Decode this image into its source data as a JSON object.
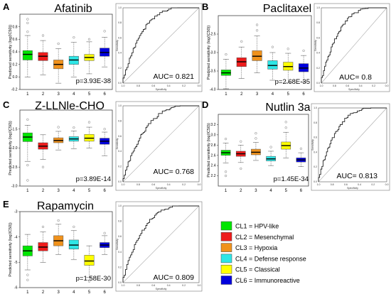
{
  "colors": {
    "CL1": "#00e600",
    "CL2": "#ee1c1c",
    "CL3": "#f0921c",
    "CL4": "#2ee6e6",
    "CL5": "#ffff00",
    "CL6": "#0000dd"
  },
  "legend": [
    {
      "key": "CL1",
      "label": "CL1 = HPV-like"
    },
    {
      "key": "CL2",
      "label": "CL2 = Mesenchymal"
    },
    {
      "key": "CL3",
      "label": "CL3 = Hypoxia"
    },
    {
      "key": "CL4",
      "label": "CL4 = Defense response"
    },
    {
      "key": "CL5",
      "label": "CL5 = Classical"
    },
    {
      "key": "CL6",
      "label": "CL6 = Immunoreactive"
    }
  ],
  "chart_data": [
    {
      "panel": "A",
      "title": "Afatinib",
      "type": "box",
      "categories": [
        "1",
        "2",
        "3",
        "4",
        "5",
        "6"
      ],
      "ylabel": "Predicted sensitivity (log(IC50))",
      "ylim": [
        -0.2,
        1.0
      ],
      "yticks": [
        "-0.2",
        "0.0",
        "0.2",
        "0.4",
        "0.6",
        "0.8"
      ],
      "pvalue": "p=3.93E-38",
      "boxes": [
        {
          "min": 0.0,
          "q1": 0.27,
          "median": 0.36,
          "q3": 0.42,
          "max": 0.66,
          "outliers": [
            0.72,
            0.86,
            0.92
          ]
        },
        {
          "min": 0.03,
          "q1": 0.26,
          "median": 0.33,
          "q3": 0.39,
          "max": 0.58,
          "outliers": [
            0.66
          ]
        },
        {
          "min": -0.1,
          "q1": 0.13,
          "median": 0.2,
          "q3": 0.27,
          "max": 0.45,
          "outliers": [
            0.53
          ]
        },
        {
          "min": 0.0,
          "q1": 0.2,
          "median": 0.27,
          "q3": 0.33,
          "max": 0.55,
          "outliers": [
            0.63
          ]
        },
        {
          "min": 0.05,
          "q1": 0.26,
          "median": 0.31,
          "q3": 0.36,
          "max": 0.56,
          "outliers": [
            0.6
          ]
        },
        {
          "min": 0.16,
          "q1": 0.33,
          "median": 0.39,
          "q3": 0.46,
          "max": 0.63,
          "outliers": [
            0.73
          ]
        }
      ],
      "roc": {
        "auc_text": "AUC= 0.821",
        "xlabel": "Specificity",
        "ylabel": "Sensitivity",
        "xticks": [
          "1.0",
          "0.8",
          "0.6",
          "0.4",
          "0.2",
          "0.0"
        ],
        "yticks": [
          "0.0",
          "0.2",
          "0.4",
          "0.6",
          "0.8",
          "1.0"
        ],
        "bow": 1.05
      }
    },
    {
      "panel": "B",
      "title": "Paclitaxel",
      "type": "box",
      "categories": [
        "1",
        "2",
        "3",
        "4",
        "5",
        "6"
      ],
      "ylabel": "Predicted sensitivity (log(IC50))",
      "ylim": [
        -4.0,
        -2.0
      ],
      "yticks": [
        "-4.0",
        "-3.5",
        "-3.0",
        "-2.5"
      ],
      "pvalue": "p=2.68E-35",
      "boxes": [
        {
          "min": -3.98,
          "q1": -3.62,
          "median": -3.55,
          "q3": -3.47,
          "max": -3.18,
          "outliers": [
            -3.05,
            -4.05
          ]
        },
        {
          "min": -3.7,
          "q1": -3.38,
          "median": -3.25,
          "q3": -3.14,
          "max": -2.85,
          "outliers": [
            -2.7
          ]
        },
        {
          "min": -3.55,
          "q1": -3.22,
          "median": -3.1,
          "q3": -2.95,
          "max": -2.55,
          "outliers": [
            -2.4,
            -2.25
          ]
        },
        {
          "min": -3.75,
          "q1": -3.45,
          "median": -3.35,
          "q3": -3.22,
          "max": -3.0,
          "outliers": [
            -2.85
          ]
        },
        {
          "min": -3.82,
          "q1": -3.48,
          "median": -3.38,
          "q3": -3.26,
          "max": -3.02,
          "outliers": [
            -2.9
          ]
        },
        {
          "min": -3.8,
          "q1": -3.52,
          "median": -3.42,
          "q3": -3.3,
          "max": -3.08,
          "outliers": [
            -2.95
          ]
        }
      ],
      "roc": {
        "auc_text": "AUC= 0.8",
        "xlabel": "Specificity",
        "ylabel": "Sensitivity",
        "xticks": [
          "1.0",
          "0.8",
          "0.6",
          "0.4",
          "0.2",
          "0.0"
        ],
        "yticks": [
          "0.0",
          "0.2",
          "0.4",
          "0.6",
          "0.8",
          "1.0"
        ],
        "bow": 0.95
      }
    },
    {
      "panel": "C",
      "title": "Z-LLNle-CHO",
      "type": "box",
      "categories": [
        "1",
        "2",
        "3",
        "4",
        "5",
        "6"
      ],
      "ylabel": "Predicted sensitivity (log(IC50))",
      "ylim": [
        -3.0,
        -1.0
      ],
      "yticks": [
        "-3.0",
        "-2.5",
        "-2.0",
        "-1.5"
      ],
      "pvalue": "p=3.89E-14",
      "boxes": [
        {
          "min": -2.35,
          "q1": -1.83,
          "median": -1.71,
          "q3": -1.6,
          "max": -1.4,
          "outliers": [
            -1.25,
            -2.45,
            -2.85
          ]
        },
        {
          "min": -2.3,
          "q1": -2.03,
          "median": -1.95,
          "q3": -1.86,
          "max": -1.65,
          "outliers": [
            -2.5
          ]
        },
        {
          "min": -2.05,
          "q1": -1.86,
          "median": -1.8,
          "q3": -1.73,
          "max": -1.56,
          "outliers": [
            -1.45
          ]
        },
        {
          "min": -2.02,
          "q1": -1.82,
          "median": -1.76,
          "q3": -1.7,
          "max": -1.55,
          "outliers": [
            -1.46
          ]
        },
        {
          "min": -2.0,
          "q1": -1.82,
          "median": -1.74,
          "q3": -1.64,
          "max": -1.45,
          "outliers": [
            -1.32
          ]
        },
        {
          "min": -2.2,
          "q1": -1.9,
          "median": -1.82,
          "q3": -1.74,
          "max": -1.58,
          "outliers": [
            -1.5
          ]
        }
      ],
      "roc": {
        "auc_text": "AUC= 0.768",
        "xlabel": "Specificity",
        "ylabel": "Sensitivity",
        "xticks": [
          "1.0",
          "0.8",
          "0.6",
          "0.4",
          "0.2",
          "0.0"
        ],
        "yticks": [
          "0.0",
          "0.2",
          "0.4",
          "0.6",
          "0.8",
          "1.0"
        ],
        "bow": 0.85
      }
    },
    {
      "panel": "D",
      "title": "Nutlin 3a",
      "type": "box",
      "categories": [
        "1",
        "2",
        "3",
        "4",
        "5",
        "6"
      ],
      "ylabel": "Predicted sensitivity (log(IC50))",
      "ylim": [
        2.0,
        3.4
      ],
      "yticks": [
        "2.2",
        "2.4",
        "2.6",
        "2.8",
        "3.0",
        "3.2"
      ],
      "pvalue": "p=1.45E-34",
      "boxes": [
        {
          "min": 2.45,
          "q1": 2.6,
          "median": 2.65,
          "q3": 2.7,
          "max": 2.84,
          "outliers": [
            2.92,
            2.28,
            2.2
          ]
        },
        {
          "min": 2.46,
          "q1": 2.58,
          "median": 2.63,
          "q3": 2.68,
          "max": 2.8,
          "outliers": [
            2.87,
            2.34
          ]
        },
        {
          "min": 2.5,
          "q1": 2.61,
          "median": 2.66,
          "q3": 2.72,
          "max": 2.85,
          "outliers": [
            2.93,
            3.03
          ]
        },
        {
          "min": 2.4,
          "q1": 2.49,
          "median": 2.53,
          "q3": 2.58,
          "max": 2.68,
          "outliers": [
            2.76
          ]
        },
        {
          "min": 2.55,
          "q1": 2.72,
          "median": 2.79,
          "q3": 2.86,
          "max": 3.05,
          "outliers": [
            3.14,
            3.25
          ]
        },
        {
          "min": 2.38,
          "q1": 2.47,
          "median": 2.51,
          "q3": 2.55,
          "max": 2.65,
          "outliers": [
            2.73
          ]
        }
      ],
      "roc": {
        "auc_text": "AUC= 0.813",
        "xlabel": "Specificity",
        "ylabel": "Sensitivity",
        "xticks": [
          "1.0",
          "0.8",
          "0.6",
          "0.4",
          "0.2",
          "0.0"
        ],
        "yticks": [
          "0.0",
          "0.2",
          "0.4",
          "0.6",
          "0.8",
          "1.0"
        ],
        "bow": 1.0
      }
    },
    {
      "panel": "E",
      "title": "Rapamycin",
      "type": "box",
      "categories": [
        "1",
        "2",
        "3",
        "4",
        "5",
        "6"
      ],
      "ylabel": "Predicted sensitivity (log(IC50))",
      "ylim": [
        -6.0,
        -3.0
      ],
      "yticks": [
        "-6",
        "-5",
        "-4",
        "-3"
      ],
      "pvalue": "p=1.58E-30",
      "boxes": [
        {
          "min": -5.3,
          "q1": -4.75,
          "median": -4.55,
          "q3": -4.35,
          "max": -3.9,
          "outliers": [
            -5.5,
            -5.7
          ]
        },
        {
          "min": -5.0,
          "q1": -4.55,
          "median": -4.4,
          "q3": -4.22,
          "max": -3.8,
          "outliers": [
            -3.6
          ]
        },
        {
          "min": -4.7,
          "q1": -4.35,
          "median": -4.15,
          "q3": -3.95,
          "max": -3.5,
          "outliers": [
            -3.35
          ]
        },
        {
          "min": -4.9,
          "q1": -4.48,
          "median": -4.32,
          "q3": -4.12,
          "max": -3.75,
          "outliers": [
            -3.6
          ]
        },
        {
          "min": -5.6,
          "q1": -5.12,
          "median": -4.95,
          "q3": -4.72,
          "max": -4.35,
          "outliers": [
            -5.75
          ]
        },
        {
          "min": -4.7,
          "q1": -4.42,
          "median": -4.32,
          "q3": -4.22,
          "max": -3.95,
          "outliers": [
            -3.85
          ]
        }
      ],
      "roc": {
        "auc_text": "AUC= 0.809",
        "xlabel": "Specificity",
        "ylabel": "Sensitivity",
        "xticks": [
          "1.0",
          "0.8",
          "0.6",
          "0.4",
          "0.2",
          "0.0"
        ],
        "yticks": [
          "0.0",
          "0.2",
          "0.4",
          "0.6",
          "0.8",
          "1.0"
        ],
        "bow": 1.0
      }
    }
  ]
}
